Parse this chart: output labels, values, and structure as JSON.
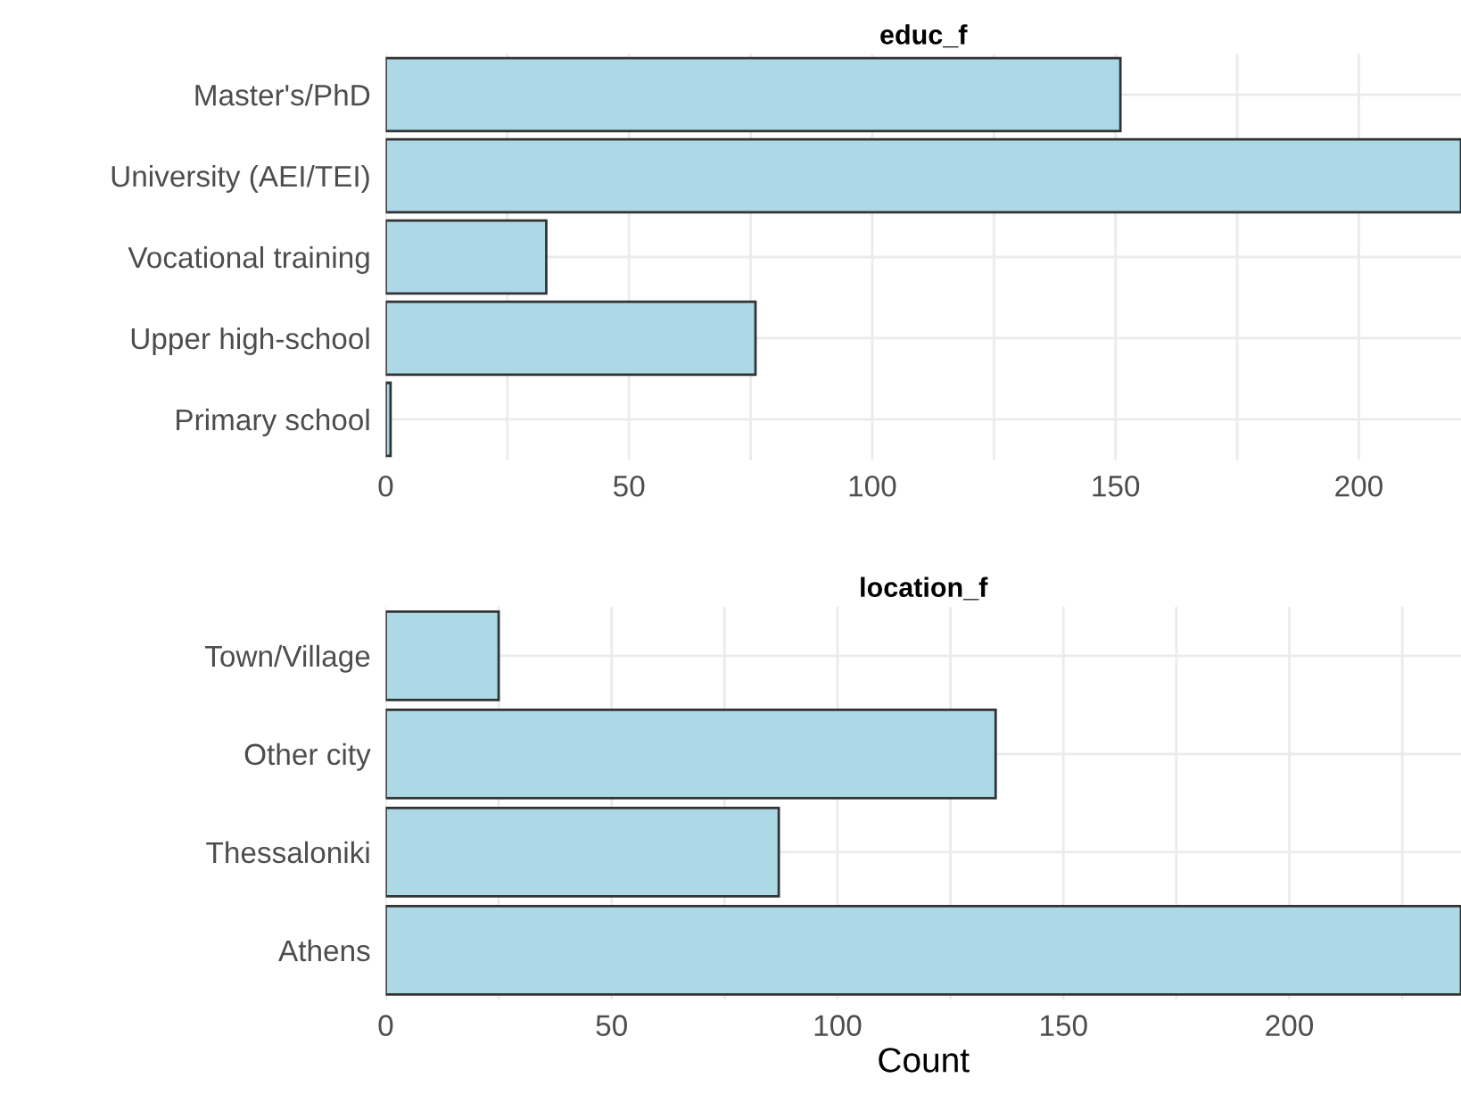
{
  "chart_data": [
    {
      "type": "bar",
      "orientation": "horizontal",
      "title": "educ_f",
      "categories": [
        "Master's/PhD",
        "University (AEI/TEI)",
        "Vocational training",
        "Upper high-school",
        "Primary school"
      ],
      "values": [
        151,
        221,
        33,
        76,
        1
      ],
      "color": "#add8e6",
      "xlim": [
        0,
        221
      ],
      "xticks": [
        0,
        {
          "value": 25,
          "label": null
        },
        50,
        {
          "value": 75,
          "label": null
        },
        100,
        {
          "value": 125,
          "label": null
        },
        150,
        {
          "value": 175,
          "label": null
        },
        200
      ],
      "grid": true
    },
    {
      "type": "bar",
      "orientation": "horizontal",
      "title": "location_f",
      "xlabel": "Count",
      "categories": [
        "Town/Village",
        "Other city",
        "Thessaloniki",
        "Athens"
      ],
      "values": [
        25,
        135,
        87,
        238
      ],
      "color": "#add8e6",
      "xlim": [
        0,
        238
      ],
      "xticks": [
        0,
        {
          "value": 25,
          "label": null
        },
        50,
        {
          "value": 75,
          "label": null
        },
        100,
        {
          "value": 125,
          "label": null
        },
        150,
        {
          "value": 175,
          "label": null
        },
        200,
        {
          "value": 225,
          "label": null
        }
      ],
      "grid": true
    }
  ]
}
